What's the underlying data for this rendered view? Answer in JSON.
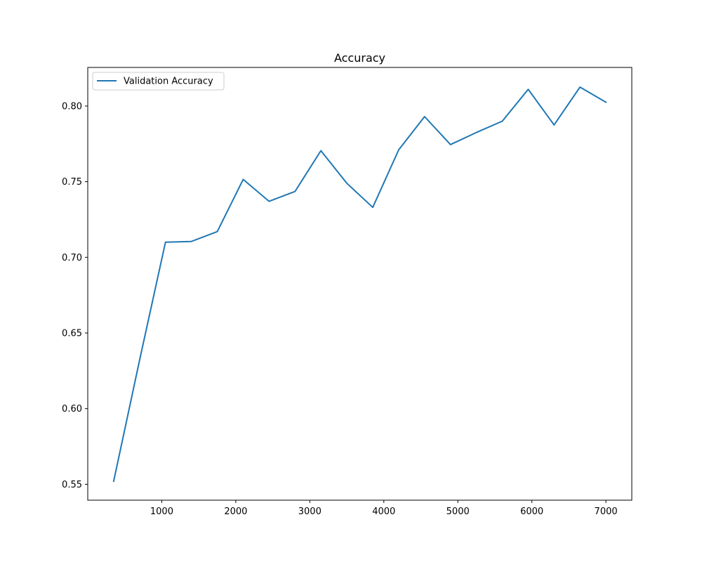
{
  "chart_data": {
    "type": "line",
    "title": "Accuracy",
    "xlabel": "",
    "ylabel": "",
    "xlim": [
      0,
      7350
    ],
    "ylim": [
      0.5395,
      0.8255
    ],
    "xticks": [
      1000,
      2000,
      3000,
      4000,
      5000,
      6000,
      7000
    ],
    "yticks": [
      0.55,
      0.6,
      0.65,
      0.7,
      0.75,
      0.8
    ],
    "ytick_labels": [
      "0.55",
      "0.60",
      "0.65",
      "0.70",
      "0.75",
      "0.80"
    ],
    "grid": false,
    "legend_position": "upper-left",
    "series": [
      {
        "name": "Validation Accuracy",
        "color": "#1f77b4",
        "x": [
          350,
          700,
          1050,
          1400,
          1750,
          2100,
          2450,
          2800,
          3150,
          3500,
          3850,
          4200,
          4550,
          4900,
          5250,
          5600,
          5950,
          6300,
          6650,
          7000
        ],
        "y": [
          0.552,
          0.632,
          0.71,
          0.7105,
          0.717,
          0.7515,
          0.737,
          0.7435,
          0.7705,
          0.749,
          0.733,
          0.771,
          0.793,
          0.7745,
          0.7825,
          0.79,
          0.811,
          0.7875,
          0.8125,
          0.8025
        ]
      }
    ]
  }
}
